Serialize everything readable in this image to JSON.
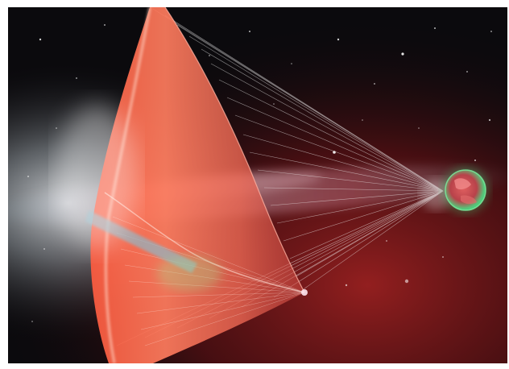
{
  "image": {
    "kind": "illustration",
    "subject": "light-sail-spacecraft",
    "colors": {
      "frame": "#ffffff",
      "space_dark": "#0b0a0d",
      "nebula_red": "#8e1c1c",
      "sail_orange": "#ff6a4a",
      "sail_highlight": "#ffd0c0",
      "tether_white": "#f4f4f4",
      "planet_green": "#3fd27a",
      "planet_core": "#c94a4a",
      "galaxy_blue": "#9fc3d0"
    },
    "icons": {
      "planet": "planet-icon",
      "sail": "light-sail-icon",
      "galaxy": "galaxy-band-icon"
    }
  }
}
